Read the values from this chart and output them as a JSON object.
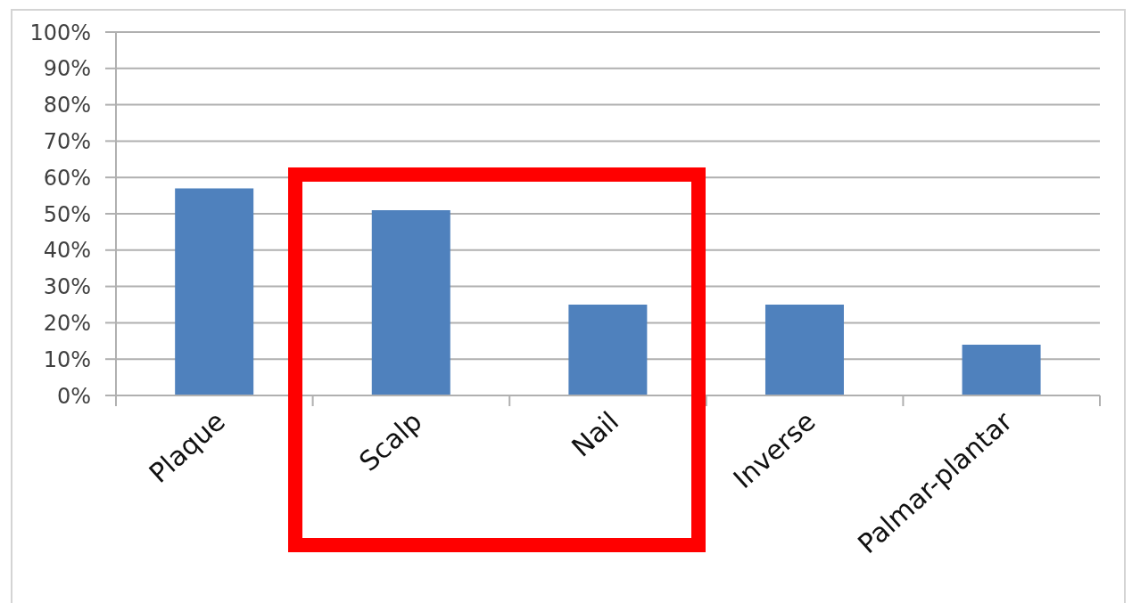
{
  "chart_data": {
    "type": "bar",
    "categories": [
      "Plaque",
      "Scalp",
      "Nail",
      "Inverse",
      "Palmar-plantar"
    ],
    "values": [
      57,
      51,
      25,
      25,
      14
    ],
    "color": "#4f81bd",
    "ylim": [
      0,
      100
    ],
    "yticks": [
      {
        "value": 0,
        "label": "0%"
      },
      {
        "value": 10,
        "label": "10%"
      },
      {
        "value": 20,
        "label": "20%"
      },
      {
        "value": 30,
        "label": "30%"
      },
      {
        "value": 40,
        "label": "40%"
      },
      {
        "value": 50,
        "label": "50%"
      },
      {
        "value": 60,
        "label": "60%"
      },
      {
        "value": 70,
        "label": "70%"
      },
      {
        "value": 80,
        "label": "80%"
      },
      {
        "value": 90,
        "label": "90%"
      },
      {
        "value": 100,
        "label": "100%"
      }
    ],
    "grid": "y"
  }
}
